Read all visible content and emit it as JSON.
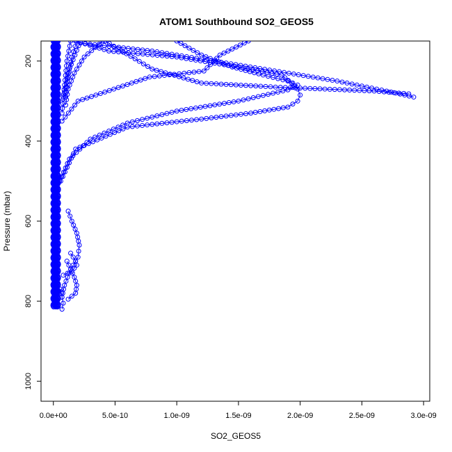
{
  "chart_data": {
    "type": "line",
    "title": "ATOM1 Southbound SO2_GEOS5",
    "xlabel": "SO2_GEOS5",
    "ylabel": "Pressure (mbar)",
    "xlim": [
      -1e-10,
      3.05e-09
    ],
    "ylim": [
      1050,
      150
    ],
    "y_reversed": true,
    "x_ticks": [
      {
        "value": 0,
        "label": "0.0e+00"
      },
      {
        "value": 5e-10,
        "label": "5.0e-10"
      },
      {
        "value": 1e-09,
        "label": "1.0e-09"
      },
      {
        "value": 1.5e-09,
        "label": "1.5e-09"
      },
      {
        "value": 2e-09,
        "label": "2.0e-09"
      },
      {
        "value": 2.5e-09,
        "label": "2.5e-09"
      },
      {
        "value": 3e-09,
        "label": "3.0e-09"
      }
    ],
    "y_ticks": [
      {
        "value": 200,
        "label": "200"
      },
      {
        "value": 400,
        "label": "400"
      },
      {
        "value": 600,
        "label": "600"
      },
      {
        "value": 800,
        "label": "800"
      },
      {
        "value": 1000,
        "label": "1000"
      }
    ],
    "grid": false,
    "legend": "none",
    "color": "#0000ff",
    "marker": "open-circle",
    "series": [
      {
        "x": [
          1.58e-09,
          1.35e-09,
          1.22e-09,
          7.8e-10,
          2e-10,
          7e-11
        ],
        "y": [
          150,
          185,
          225,
          240,
          300,
          350
        ]
      },
      {
        "x": [
          2.2e-10,
          8e-10,
          1.4e-09,
          2.3e-09,
          2.7e-09,
          2.92e-09
        ],
        "y": [
          155,
          175,
          205,
          250,
          275,
          290
        ]
      },
      {
        "x": [
          4.2e-10,
          8e-10,
          1.2e-09,
          1.8e-09,
          2.6e-09,
          2.88e-09
        ],
        "y": [
          150,
          220,
          255,
          265,
          275,
          282
        ]
      },
      {
        "x": [
          1.8e-10,
          4.5e-10,
          1e-09,
          1.5e-09,
          1.85e-09,
          1.93e-09,
          1.98e-09,
          2e-09,
          1.98e-09,
          1.9e-09,
          1.6e-09,
          1.2e-09,
          6e-10,
          1.8e-10,
          6e-11
        ],
        "y": [
          150,
          175,
          190,
          215,
          235,
          255,
          270,
          285,
          300,
          315,
          330,
          345,
          365,
          420,
          500
        ]
      },
      {
        "x": [
          1e-09,
          1.2e-09,
          1.45e-09,
          1.7e-09,
          1.9e-09,
          1.98e-09,
          1.9e-09,
          1.5e-09,
          1e-09,
          6e-10,
          3e-10,
          1.3e-10,
          5e-11
        ],
        "y": [
          150,
          185,
          215,
          235,
          250,
          260,
          272,
          300,
          325,
          355,
          395,
          445,
          500
        ]
      },
      {
        "x": [
          4e-10,
          2.5e-10,
          1.7e-10,
          1.2e-10,
          1e-10
        ],
        "y": [
          150,
          190,
          230,
          270,
          310
        ]
      },
      {
        "x": [
          1.4e-10,
          1.1e-10,
          9e-11,
          7e-11
        ],
        "y": [
          150,
          200,
          260,
          330
        ]
      },
      {
        "x": [
          1.9e-10,
          1.5e-10,
          1.2e-10,
          1e-10
        ],
        "y": [
          150,
          190,
          240,
          290
        ]
      },
      {
        "x": [
          2.2e-10,
          1.3e-10,
          8e-11
        ],
        "y": [
          150,
          220,
          290
        ]
      },
      {
        "x": [
          1.2e-10,
          1.5e-10,
          1.9e-10,
          2.1e-10,
          2e-10,
          1.4e-10,
          9e-11,
          7e-11
        ],
        "y": [
          575,
          600,
          630,
          660,
          690,
          720,
          760,
          790
        ]
      },
      {
        "x": [
          1.1e-10,
          1.4e-10,
          1.7e-10,
          1.9e-10,
          1.8e-10,
          1.2e-10
        ],
        "y": [
          700,
          720,
          740,
          760,
          780,
          795
        ]
      },
      {
        "x": [
          6e-11,
          7e-11,
          8e-11,
          7e-11
        ],
        "y": [
          770,
          790,
          805,
          820
        ]
      },
      {
        "x": [
          1.4e-10,
          1.6e-10,
          1.8e-10,
          1.9e-10,
          1.5e-10,
          8e-11
        ],
        "y": [
          680,
          690,
          700,
          710,
          725,
          735
        ]
      }
    ]
  }
}
